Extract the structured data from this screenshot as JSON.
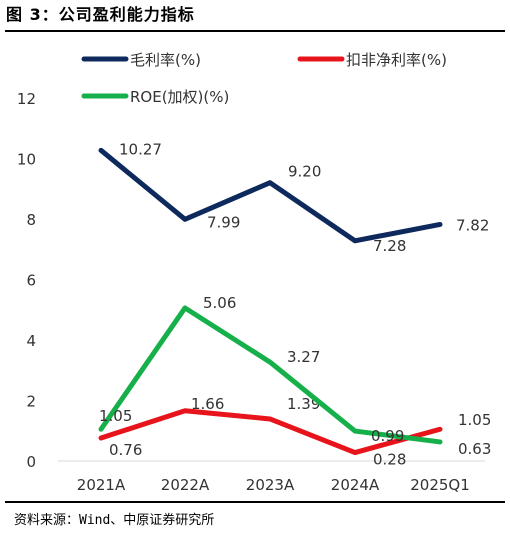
{
  "figure_title": "图 3：公司盈利能力指标",
  "source": "资料来源：Wind、中原证券研究所",
  "chart_data": {
    "type": "line",
    "categories": [
      "2021A",
      "2022A",
      "2023A",
      "2024A",
      "2025Q1"
    ],
    "ylim": [
      0,
      12
    ],
    "yticks": [
      0,
      2,
      4,
      6,
      8,
      10,
      12
    ],
    "grid": false,
    "legend_position": "top",
    "series": [
      {
        "name": "毛利率(%)",
        "color": "#0e2a5c",
        "values": [
          10.27,
          7.99,
          9.2,
          7.28,
          7.82
        ],
        "labels": [
          "10.27",
          "7.99",
          "9.20",
          "7.28",
          "7.82"
        ]
      },
      {
        "name": "扣非净利率(%)",
        "color": "#e8141b",
        "values": [
          0.76,
          1.66,
          1.39,
          0.28,
          1.05
        ],
        "labels": [
          "0.76",
          "1.66",
          "1.39",
          "0.28",
          "1.05"
        ]
      },
      {
        "name": "ROE(加权)(%)",
        "color": "#15b04a",
        "values": [
          1.05,
          5.06,
          3.27,
          0.99,
          0.63
        ],
        "labels": [
          "1.05",
          "5.06",
          "3.27",
          "0.99",
          "0.63"
        ]
      }
    ]
  }
}
